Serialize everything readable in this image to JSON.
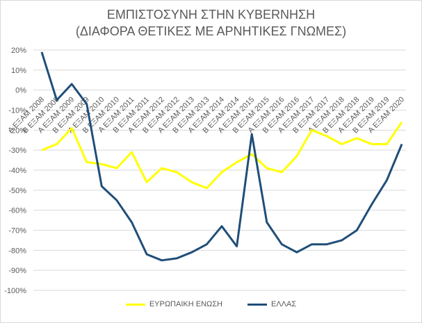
{
  "chart_data": {
    "type": "line",
    "title": "ΕΜΠΙΣΤΟΣΥΝΗ ΣΤΗΝ ΚΥΒΕRΝΗΣΗ",
    "subtitle": "(ΔΙΑΦΟΡΑ ΘΕΤΙΚΕΣ ΜΕ ΑΡΝΗΤΙΚΕΣ ΓΝΩΜΕΣ)",
    "categories": [
      "Α ΕΞΑΜ 2008",
      "Β ΕΞΑΜ 2008",
      "Α ΕΞΑΜ 2009",
      "Β ΕΞΑΜ 2009",
      "Α ΕΞΑΜ 2010",
      "Β ΕΞΑΜ 2010",
      "Α ΕΞΑΜ 2011",
      "Β ΕΞΑΜ 2011",
      "Α ΕΞΑΜ 2012",
      "Β ΕΞΑΜ 2012",
      "Α ΕΞΑΜ 2013",
      "Β ΕΞΑΜ 2013",
      "Α ΕΞΑΜ 2014",
      "Β ΕΞΑΜ 2014",
      "Α ΕΞΑΜ 2015",
      "Β ΕΞΑΜ 2015",
      "Α ΕΞΑΜ 2016",
      "Β ΕΞΑΜ 2016",
      "Α ΕΞΑΜ 2017",
      "Β ΕΞΑΜ 2017",
      "Α ΕΞΑΜ 2018",
      "Β ΕΞΑΜ 2018",
      "Α ΕΞΑΜ 2019",
      "Β ΕΞΑΜ 2019",
      "Α ΕΞΑΜ 2020"
    ],
    "series": [
      {
        "name": "ΕΥΡΩΠΑΙΚΗ ΕΝΩΣΗ",
        "color": "#ffff00",
        "values": [
          -30,
          -27,
          -19,
          -36,
          -37,
          -39,
          -31,
          -46,
          -39,
          -41,
          -46,
          -49,
          -41,
          -36,
          -32,
          -39,
          -41,
          -33,
          -20,
          -23,
          -27,
          -24,
          -27,
          -27,
          -16
        ]
      },
      {
        "name": "ΕΛΛΑΣ",
        "color": "#1f4e79",
        "values": [
          19,
          -5,
          3,
          -7,
          -48,
          -55,
          -66,
          -82,
          -85,
          -84,
          -81,
          -77,
          -68,
          -78,
          -22,
          -66,
          -77,
          -81,
          -77,
          -77,
          -75,
          -70,
          -57,
          -45,
          -27
        ]
      }
    ],
    "ylim": [
      -100,
      20
    ],
    "ytick_step": 10,
    "yticks": [
      "20%",
      "10%",
      "0%",
      "-10%",
      "-20%",
      "-30%",
      "-40%",
      "-50%",
      "-60%",
      "-70%",
      "-80%",
      "-90%",
      "-100%"
    ],
    "grid": true,
    "legend_position": "bottom"
  }
}
